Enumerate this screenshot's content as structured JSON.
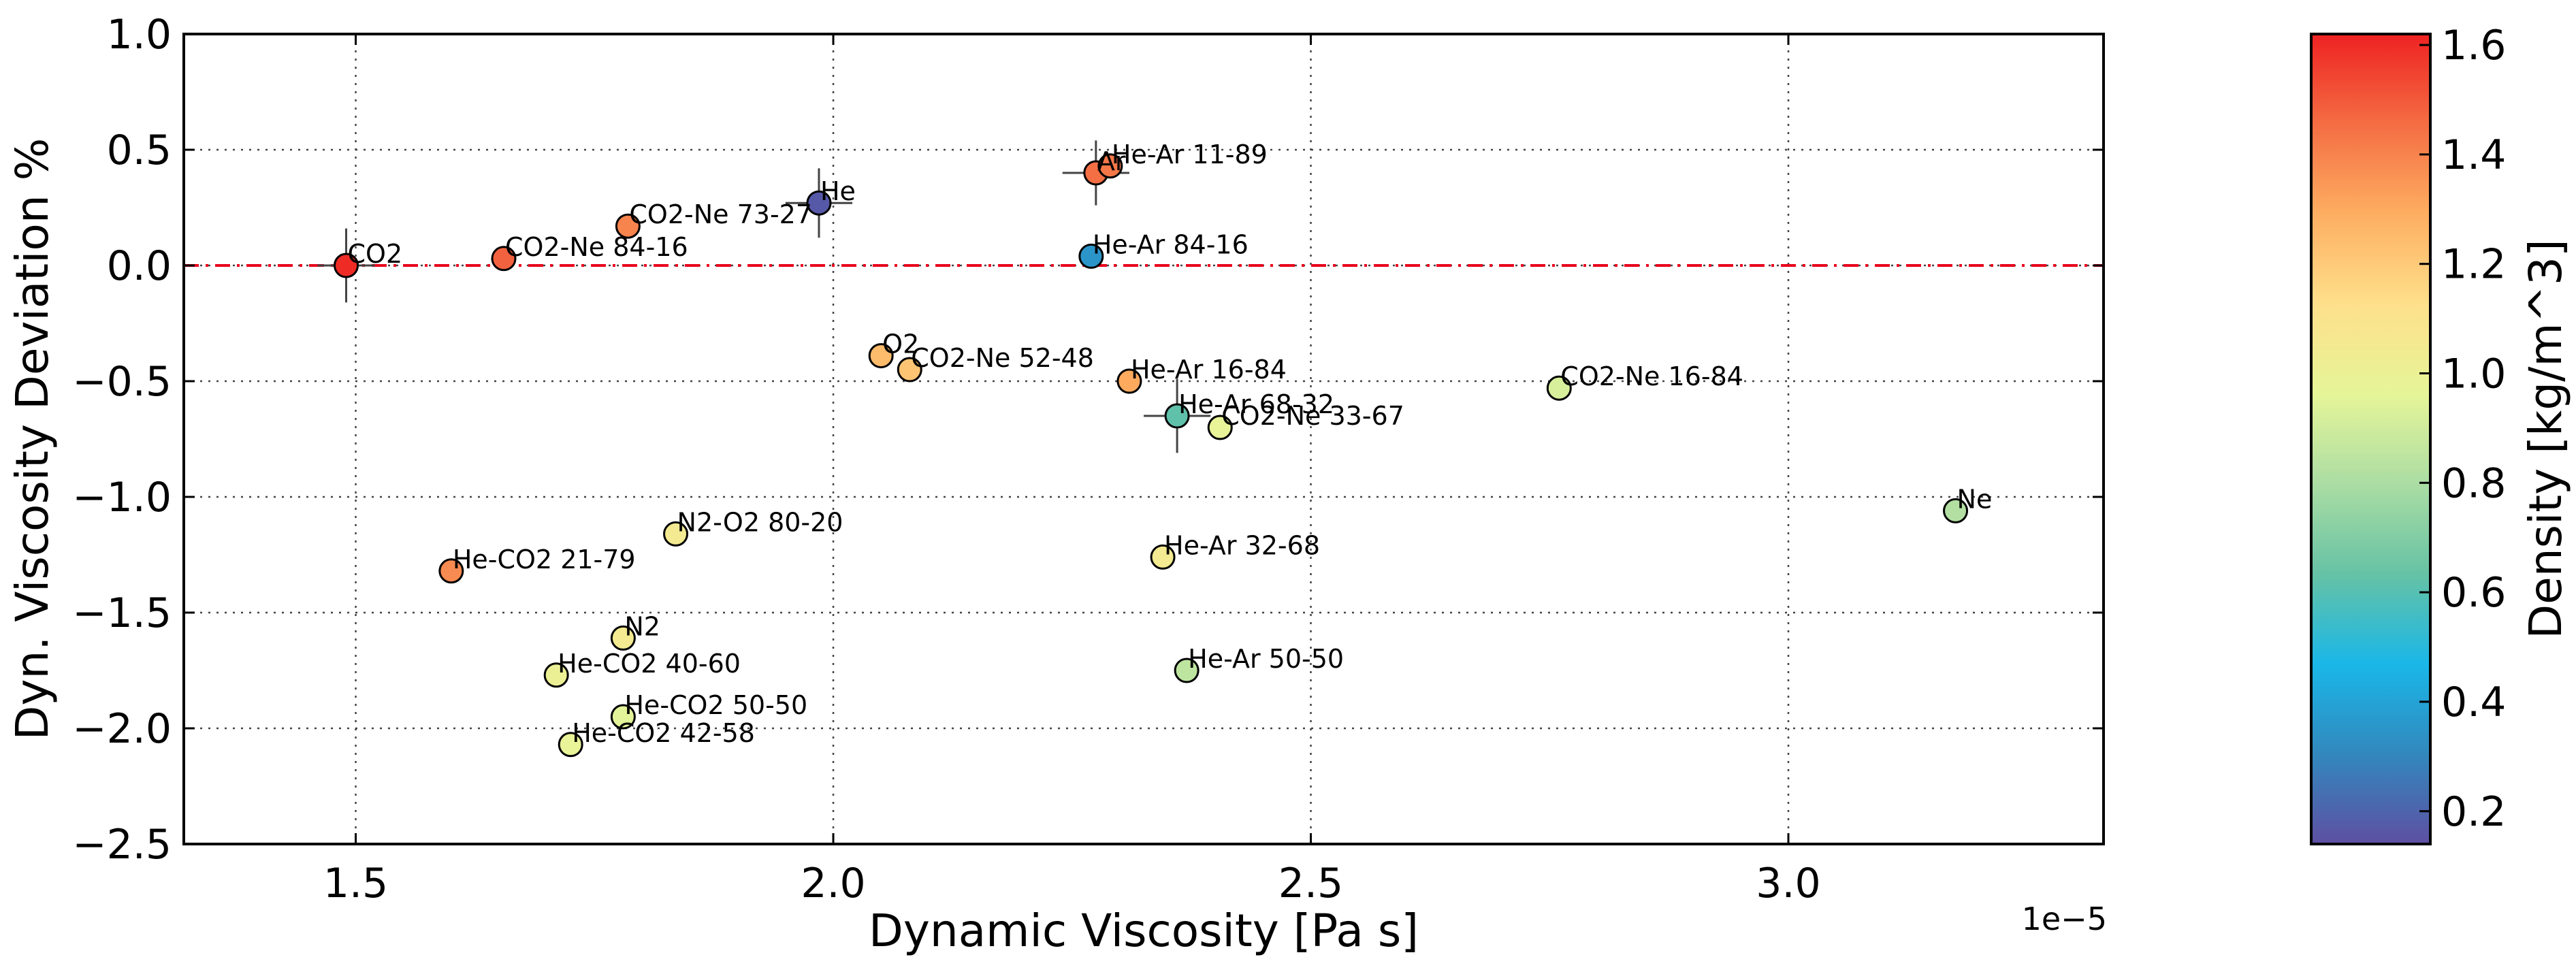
{
  "chart_data": {
    "type": "scatter",
    "title": "",
    "xlabel": "Dynamic Viscosity [Pa s]",
    "ylabel": "Dyn. Viscosity Deviation %",
    "x_offset_label": "1e−5",
    "xlim": [
      1.32,
      3.33
    ],
    "ylim": [
      -2.5,
      1.0
    ],
    "x_ticks": [
      1.5,
      2.0,
      2.5,
      3.0
    ],
    "x_tick_labels": [
      "1.5",
      "2.0",
      "2.5",
      "3.0"
    ],
    "y_ticks": [
      -2.5,
      -2.0,
      -1.5,
      -1.0,
      -0.5,
      0.0,
      0.5,
      1.0
    ],
    "y_tick_labels": [
      "−2.5",
      "−2.0",
      "−1.5",
      "−1.0",
      "−0.5",
      "0.0",
      "0.5",
      "1.0"
    ],
    "grid": true,
    "reference_line": {
      "y": 0.0,
      "style": "dash-dot",
      "color": "#e8001c"
    },
    "colorbar": {
      "label": "Density [kg/m^3]",
      "range": [
        0.14,
        1.62
      ],
      "ticks": [
        0.2,
        0.4,
        0.6,
        0.8,
        1.0,
        1.2,
        1.4,
        1.6
      ],
      "tick_labels": [
        "0.2",
        "0.4",
        "0.6",
        "0.8",
        "1.0",
        "1.2",
        "1.4",
        "1.6"
      ],
      "colormap": "spectral",
      "stops": [
        "#5e4fa2",
        "#3288bd",
        "#1ab7e8",
        "#66c2a5",
        "#abdda4",
        "#e6f598",
        "#fee08b",
        "#fdae61",
        "#f46d43",
        "#ee2222"
      ]
    },
    "points": [
      {
        "label": "CO2",
        "x": 1.49,
        "y": 0.0,
        "density": 1.6,
        "xerr": 0.03,
        "yerr": 0.16
      },
      {
        "label": "CO2-Ne 84-16",
        "x": 1.655,
        "y": 0.03,
        "density": 1.48
      },
      {
        "label": "CO2-Ne 73-27",
        "x": 1.785,
        "y": 0.17,
        "density": 1.4
      },
      {
        "label": "He",
        "x": 1.985,
        "y": 0.27,
        "density": 0.17,
        "xerr": 0.035,
        "yerr": 0.15
      },
      {
        "label": "Ar",
        "x": 2.275,
        "y": 0.4,
        "density": 1.45,
        "xerr": 0.035,
        "yerr": 0.14
      },
      {
        "label": "He-Ar 11-89",
        "x": 2.29,
        "y": 0.43,
        "density": 1.43
      },
      {
        "label": "He-Ar 84-16",
        "x": 2.27,
        "y": 0.04,
        "density": 0.35
      },
      {
        "label": "O2",
        "x": 2.05,
        "y": -0.39,
        "density": 1.25
      },
      {
        "label": "CO2-Ne 52-48",
        "x": 2.08,
        "y": -0.45,
        "density": 1.22
      },
      {
        "label": "He-Ar 16-84",
        "x": 2.31,
        "y": -0.5,
        "density": 1.3
      },
      {
        "label": "He-Ar 68-32",
        "x": 2.36,
        "y": -0.65,
        "density": 0.62,
        "xerr": 0.035,
        "yerr": 0.16
      },
      {
        "label": "CO2-Ne 33-67",
        "x": 2.405,
        "y": -0.7,
        "density": 0.98
      },
      {
        "label": "CO2-Ne 16-84",
        "x": 2.76,
        "y": -0.53,
        "density": 0.92
      },
      {
        "label": "Ne",
        "x": 3.175,
        "y": -1.06,
        "density": 0.82
      },
      {
        "label": "N2-O2 80-20",
        "x": 1.835,
        "y": -1.16,
        "density": 1.05
      },
      {
        "label": "He-CO2 21-79",
        "x": 1.6,
        "y": -1.32,
        "density": 1.38
      },
      {
        "label": "He-Ar 32-68",
        "x": 2.345,
        "y": -1.26,
        "density": 1.05
      },
      {
        "label": "N2",
        "x": 1.78,
        "y": -1.61,
        "density": 1.05
      },
      {
        "label": "He-CO2 40-60",
        "x": 1.71,
        "y": -1.77,
        "density": 1.0
      },
      {
        "label": "He-Ar 50-50",
        "x": 2.37,
        "y": -1.75,
        "density": 0.85
      },
      {
        "label": "He-CO2 50-50",
        "x": 1.78,
        "y": -1.95,
        "density": 0.95
      },
      {
        "label": "He-CO2 42-58",
        "x": 1.725,
        "y": -2.07,
        "density": 0.98
      }
    ]
  }
}
